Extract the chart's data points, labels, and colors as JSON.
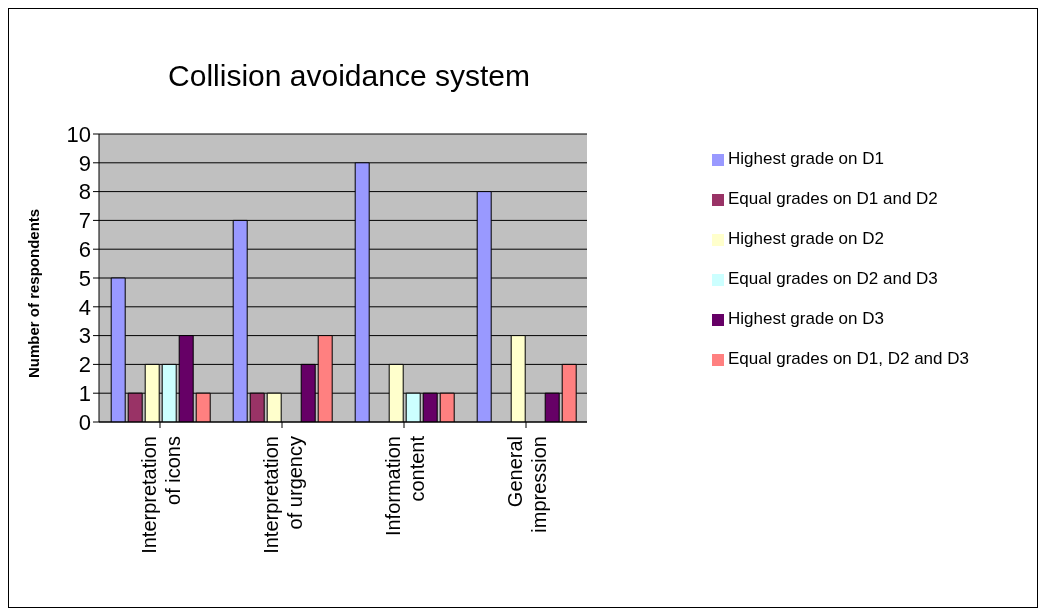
{
  "chart_data": {
    "type": "bar",
    "title": "Collision avoidance system",
    "ylabel": "Number of respondents",
    "categories": [
      "Interpretation of icons",
      "Interpretation of urgency",
      "Information content",
      "General impression"
    ],
    "series": [
      {
        "name": "Highest grade on D1",
        "color": "#9999ff",
        "values": [
          5,
          7,
          9,
          8
        ]
      },
      {
        "name": "Equal grades on D1 and D2",
        "color": "#993366",
        "values": [
          1,
          1,
          0,
          0
        ]
      },
      {
        "name": "Highest grade on D2",
        "color": "#ffffcc",
        "values": [
          2,
          1,
          2,
          3
        ]
      },
      {
        "name": "Equal grades on D2 and D3",
        "color": "#ccffff",
        "values": [
          2,
          0,
          1,
          0
        ]
      },
      {
        "name": "Highest grade on D3",
        "color": "#660066",
        "values": [
          3,
          2,
          1,
          1
        ]
      },
      {
        "name": "Equal grades on D1, D2 and D3",
        "color": "#ff8080",
        "values": [
          1,
          3,
          1,
          2
        ]
      }
    ],
    "ylim": [
      0,
      10
    ],
    "yticks": [
      0,
      1,
      2,
      3,
      4,
      5,
      6,
      7,
      8,
      9,
      10
    ],
    "grid": "y",
    "legend": "right"
  }
}
